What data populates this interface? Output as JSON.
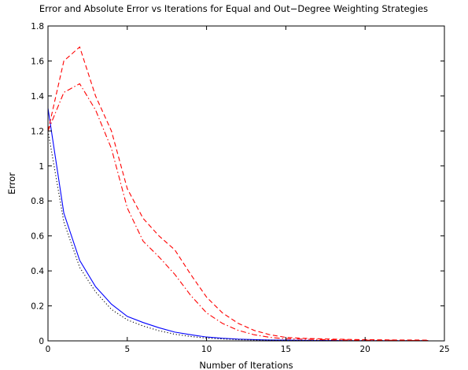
{
  "chart_data": {
    "type": "line",
    "title": "Error and Absolute Error vs Iterations for Equal and Out−Degree Weighting Strategies",
    "xlabel": "Number of Iterations",
    "ylabel": "Error",
    "xlim": [
      0,
      25
    ],
    "ylim": [
      0,
      1.8
    ],
    "xticks": [
      0,
      5,
      10,
      15,
      20,
      25
    ],
    "yticks": [
      0,
      0.2,
      0.4,
      0.6,
      0.8,
      1,
      1.2,
      1.4,
      1.6,
      1.8
    ],
    "xtick_labels": [
      "0",
      "5",
      "10",
      "15",
      "20",
      "25"
    ],
    "ytick_labels": [
      "0",
      "0.2",
      "0.4",
      "0.6",
      "0.8",
      "1",
      "1.2",
      "1.4",
      "1.6",
      "1.8"
    ],
    "grid": false,
    "legend": "none",
    "series": [
      {
        "color": "#0000ff",
        "style": "solid",
        "x": [
          0,
          1,
          2,
          3,
          4,
          5,
          6,
          7,
          8,
          9,
          10,
          11,
          12,
          13,
          14,
          15,
          16,
          17,
          18,
          19,
          20,
          21,
          22,
          23,
          24
        ],
        "values": [
          1.33,
          0.73,
          0.46,
          0.31,
          0.21,
          0.14,
          0.105,
          0.075,
          0.05,
          0.035,
          0.022,
          0.015,
          0.01,
          0.007,
          0.005,
          0.004,
          0.003,
          0.002,
          0.002,
          0.001,
          0.001,
          0.001,
          0.001,
          0.001,
          0.001
        ]
      },
      {
        "color": "#000000",
        "style": "dotted",
        "x": [
          0,
          1,
          2,
          3,
          4,
          5,
          6,
          7,
          8,
          9,
          10,
          11,
          12,
          13,
          14,
          15,
          16,
          17,
          18,
          19,
          20,
          21,
          22,
          23,
          24
        ],
        "values": [
          1.2,
          0.68,
          0.42,
          0.28,
          0.18,
          0.12,
          0.085,
          0.058,
          0.038,
          0.025,
          0.016,
          0.011,
          0.007,
          0.005,
          0.004,
          0.003,
          0.002,
          0.002,
          0.001,
          0.001,
          0.001,
          0.001,
          0.001,
          0.001,
          0.001
        ]
      },
      {
        "color": "#ff0000",
        "style": "dashed",
        "x": [
          0,
          1,
          2,
          3,
          4,
          5,
          6,
          7,
          8,
          9,
          10,
          11,
          12,
          13,
          14,
          15,
          16,
          17,
          18,
          19,
          20,
          21,
          22,
          23,
          24
        ],
        "values": [
          1.2,
          1.6,
          1.68,
          1.4,
          1.2,
          0.87,
          0.7,
          0.6,
          0.52,
          0.38,
          0.25,
          0.16,
          0.1,
          0.06,
          0.035,
          0.02,
          0.015,
          0.012,
          0.01,
          0.008,
          0.007,
          0.006,
          0.005,
          0.005,
          0.004
        ]
      },
      {
        "color": "#ff0000",
        "style": "dashdot",
        "x": [
          0,
          1,
          2,
          3,
          4,
          5,
          6,
          7,
          8,
          9,
          10,
          11,
          12,
          13,
          14,
          15,
          16,
          17,
          18,
          19,
          20,
          21,
          22,
          23,
          24
        ],
        "values": [
          1.2,
          1.42,
          1.47,
          1.32,
          1.1,
          0.76,
          0.57,
          0.48,
          0.38,
          0.26,
          0.16,
          0.1,
          0.06,
          0.035,
          0.02,
          0.012,
          0.01,
          0.008,
          0.006,
          0.005,
          0.004,
          0.003,
          0.003,
          0.002,
          0.002
        ]
      }
    ]
  }
}
